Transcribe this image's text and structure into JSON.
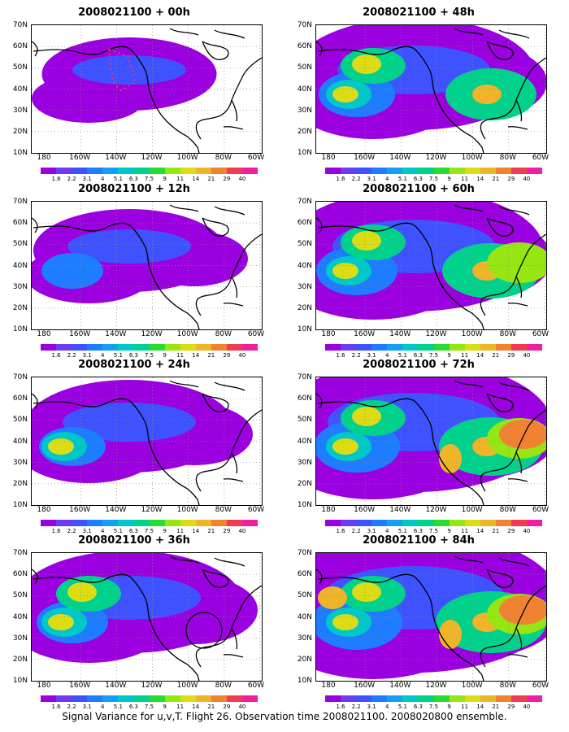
{
  "panels": [
    {
      "title": "2008021100 + 00h",
      "level": 0
    },
    {
      "title": "2008021100 + 48h",
      "level": 4
    },
    {
      "title": "2008021100 + 12h",
      "level": 1
    },
    {
      "title": "2008021100 + 60h",
      "level": 5
    },
    {
      "title": "2008021100 + 24h",
      "level": 2
    },
    {
      "title": "2008021100 + 72h",
      "level": 6
    },
    {
      "title": "2008021100 + 36h",
      "level": 3
    },
    {
      "title": "2008021100 + 84h",
      "level": 7
    }
  ],
  "lat_labels": [
    "70N",
    "60N",
    "50N",
    "40N",
    "30N",
    "20N",
    "10N"
  ],
  "lon_labels": [
    "180",
    "160W",
    "140W",
    "120W",
    "100W",
    "80W",
    "60W"
  ],
  "colorbar": {
    "values": [
      "1.6",
      "2.2",
      "3.1",
      "4",
      "5.1",
      "6.3",
      "7.5",
      "9",
      "11",
      "14",
      "21",
      "29",
      "40"
    ],
    "colors": [
      "#9b00e0",
      "#6e3cf0",
      "#3f52ff",
      "#1e7dff",
      "#14a0f0",
      "#00c8c8",
      "#00d28c",
      "#28dc32",
      "#96e614",
      "#dcdc14",
      "#f0b428",
      "#f08232",
      "#f03c50",
      "#f01ea0"
    ]
  },
  "caption": "Signal Variance for u,v,T. Flight 26. Observation time 2008021100. 2008020800 ensemble."
}
